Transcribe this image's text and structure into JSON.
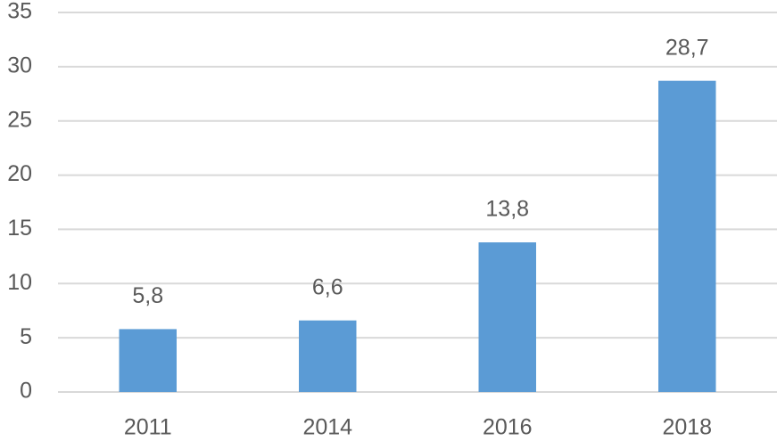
{
  "chart_data": {
    "type": "bar",
    "categories": [
      "2011",
      "2014",
      "2016",
      "2018"
    ],
    "values": [
      5.8,
      6.6,
      13.8,
      28.7
    ],
    "value_labels": [
      "5,8",
      "6,6",
      "13,8",
      "28,7"
    ],
    "color": "#5b9bd5",
    "ylim": [
      0,
      35
    ],
    "yticks": [
      0,
      5,
      10,
      15,
      20,
      25,
      30,
      35
    ],
    "grid": true
  }
}
